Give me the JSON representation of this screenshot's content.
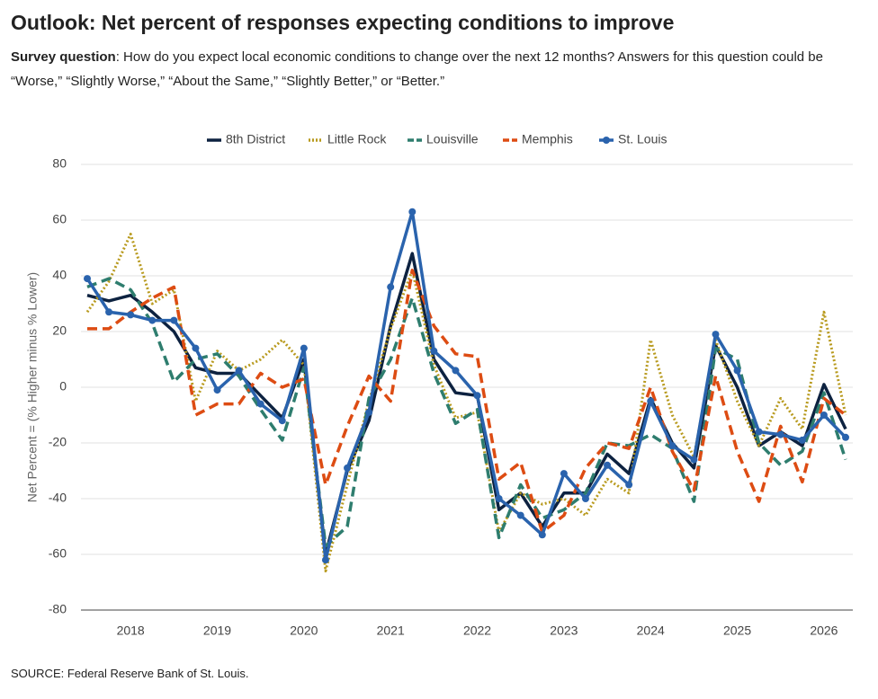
{
  "chart_data": {
    "type": "line",
    "title": "Outlook: Net percent of responses expecting conditions to improve",
    "subtitle_label": "Survey question",
    "subtitle": ": How do you expect local economic conditions to change over the next 12 months? Answers for this question could be “Worse,” “Slightly Worse,” “About the Same,” “Slightly Better,” or “Better.”",
    "source": "SOURCE: Federal Reserve Bank of St. Louis.",
    "ylabel": "Net Percent = (% Higher minus % Lower)",
    "categories": [
      null,
      null,
      "2018",
      null,
      null,
      null,
      "2019",
      null,
      null,
      null,
      "2020",
      null,
      null,
      null,
      "2021",
      null,
      null,
      null,
      "2022",
      null,
      null,
      null,
      "2023",
      null,
      null,
      null,
      "2024",
      null,
      null,
      null,
      "2025",
      null,
      null,
      null,
      "2026",
      null
    ],
    "series": [
      {
        "name": "8th District",
        "color": "#0d2240",
        "line_style": "solid",
        "markers": false,
        "values": [
          33,
          31,
          33,
          27,
          20,
          7,
          5,
          5,
          -3,
          -11,
          10,
          -60,
          -30,
          -12,
          22,
          48,
          10,
          -2,
          -3,
          -44,
          -38,
          -50,
          -38,
          -38,
          -24,
          -31,
          -4,
          -20,
          -29,
          15,
          0,
          -21,
          -16,
          -21,
          1,
          -15
        ]
      },
      {
        "name": "Little Rock",
        "color": "#b89a1e",
        "line_style": "dotted",
        "markers": false,
        "values": [
          27,
          38,
          55,
          30,
          35,
          -5,
          13,
          6,
          10,
          17,
          8,
          -66,
          -35,
          -5,
          21,
          42,
          8,
          -11,
          -9,
          -52,
          -38,
          -42,
          -40,
          -46,
          -33,
          -38,
          17,
          -10,
          -25,
          17,
          -5,
          -21,
          -4,
          -15,
          27,
          -10
        ]
      },
      {
        "name": "Louisville",
        "color": "#2e7d6e",
        "line_style": "dashed",
        "markers": false,
        "values": [
          36,
          39,
          35,
          23,
          2,
          10,
          12,
          4,
          -8,
          -19,
          7,
          -57,
          -50,
          -4,
          10,
          32,
          5,
          -13,
          -8,
          -54,
          -35,
          -47,
          -44,
          -38,
          -20,
          -21,
          -17,
          -22,
          -41,
          14,
          10,
          -20,
          -28,
          -23,
          -2,
          -26
        ]
      },
      {
        "name": "Memphis",
        "color": "#dd4c13",
        "line_style": "dashed",
        "markers": false,
        "values": [
          21,
          21,
          27,
          32,
          36,
          -10,
          -6,
          -6,
          5,
          0,
          3,
          -35,
          -14,
          4,
          -5,
          42,
          22,
          12,
          11,
          -33,
          -27,
          -52,
          -46,
          -29,
          -20,
          -22,
          0,
          -23,
          -37,
          4,
          -23,
          -41,
          -14,
          -34,
          -4,
          -10
        ]
      },
      {
        "name": "St. Louis",
        "color": "#2a63ad",
        "line_style": "solid",
        "markers": true,
        "values": [
          39,
          27,
          26,
          24,
          24,
          14,
          -1,
          6,
          -6,
          -12,
          14,
          -62,
          -29,
          -9,
          36,
          63,
          13,
          6,
          -3,
          -40,
          -46,
          -53,
          -31,
          -40,
          -28,
          -35,
          -5,
          -21,
          -26,
          19,
          6,
          -16,
          -17,
          -19,
          -10,
          -18
        ]
      }
    ],
    "ylim": [
      -80,
      80
    ],
    "yticks": [
      -80,
      -60,
      -40,
      -20,
      0,
      20,
      40,
      60,
      80
    ],
    "grid": true,
    "legend": "top"
  }
}
